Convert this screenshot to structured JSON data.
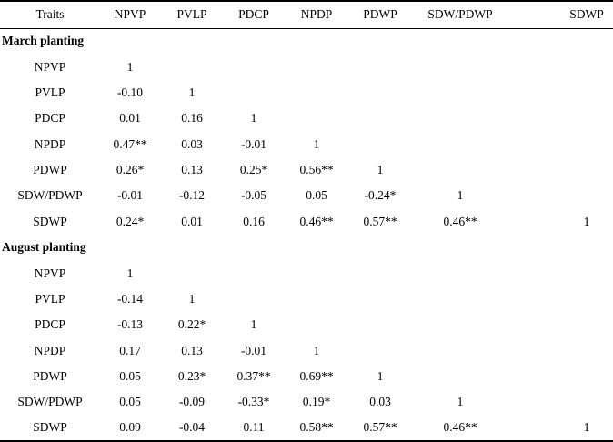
{
  "page": {
    "background": "#ffffff",
    "text_color": "#000000"
  },
  "table": {
    "columns": [
      "Traits",
      "NPVP",
      "PVLP",
      "PDCP",
      "NPDP",
      "PDWP",
      "SDW/PDWP",
      "SDWP"
    ],
    "sections": [
      {
        "title": "March planting",
        "rows": [
          {
            "trait": "NPVP",
            "values": [
              "1",
              "",
              "",
              "",
              "",
              "",
              ""
            ]
          },
          {
            "trait": "PVLP",
            "values": [
              "-0.10",
              "1",
              "",
              "",
              "",
              "",
              ""
            ]
          },
          {
            "trait": "PDCP",
            "values": [
              "0.01",
              "0.16",
              "1",
              "",
              "",
              "",
              ""
            ]
          },
          {
            "trait": "NPDP",
            "values": [
              "0.47**",
              "0.03",
              "-0.01",
              "1",
              "",
              "",
              ""
            ]
          },
          {
            "trait": "PDWP",
            "values": [
              "0.26*",
              "0.13",
              "0.25*",
              "0.56**",
              "1",
              "",
              ""
            ]
          },
          {
            "trait": "SDW/PDWP",
            "values": [
              "-0.01",
              "-0.12",
              "-0.05",
              "0.05",
              "-0.24*",
              "1",
              ""
            ]
          },
          {
            "trait": "SDWP",
            "values": [
              "0.24*",
              "0.01",
              "0.16",
              "0.46**",
              "0.57**",
              "0.46**",
              "1"
            ]
          }
        ]
      },
      {
        "title": "August planting",
        "rows": [
          {
            "trait": "NPVP",
            "values": [
              "1",
              "",
              "",
              "",
              "",
              "",
              ""
            ]
          },
          {
            "trait": "PVLP",
            "values": [
              "-0.14",
              "1",
              "",
              "",
              "",
              "",
              ""
            ]
          },
          {
            "trait": "PDCP",
            "values": [
              "-0.13",
              "0.22*",
              "1",
              "",
              "",
              "",
              ""
            ]
          },
          {
            "trait": "NPDP",
            "values": [
              "0.17",
              "0.13",
              "-0.01",
              "1",
              "",
              "",
              ""
            ]
          },
          {
            "trait": "PDWP",
            "values": [
              "0.05",
              "0.23*",
              "0.37**",
              "0.69**",
              "1",
              "",
              ""
            ]
          },
          {
            "trait": "SDW/PDWP",
            "values": [
              "0.05",
              "-0.09",
              "-0.33*",
              "0.19*",
              "0.03",
              "1",
              ""
            ]
          },
          {
            "trait": "SDWP",
            "values": [
              "0.09",
              "-0.04",
              "0.11",
              "0.58**",
              "0.57**",
              "0.46**",
              "1"
            ]
          }
        ]
      }
    ]
  }
}
